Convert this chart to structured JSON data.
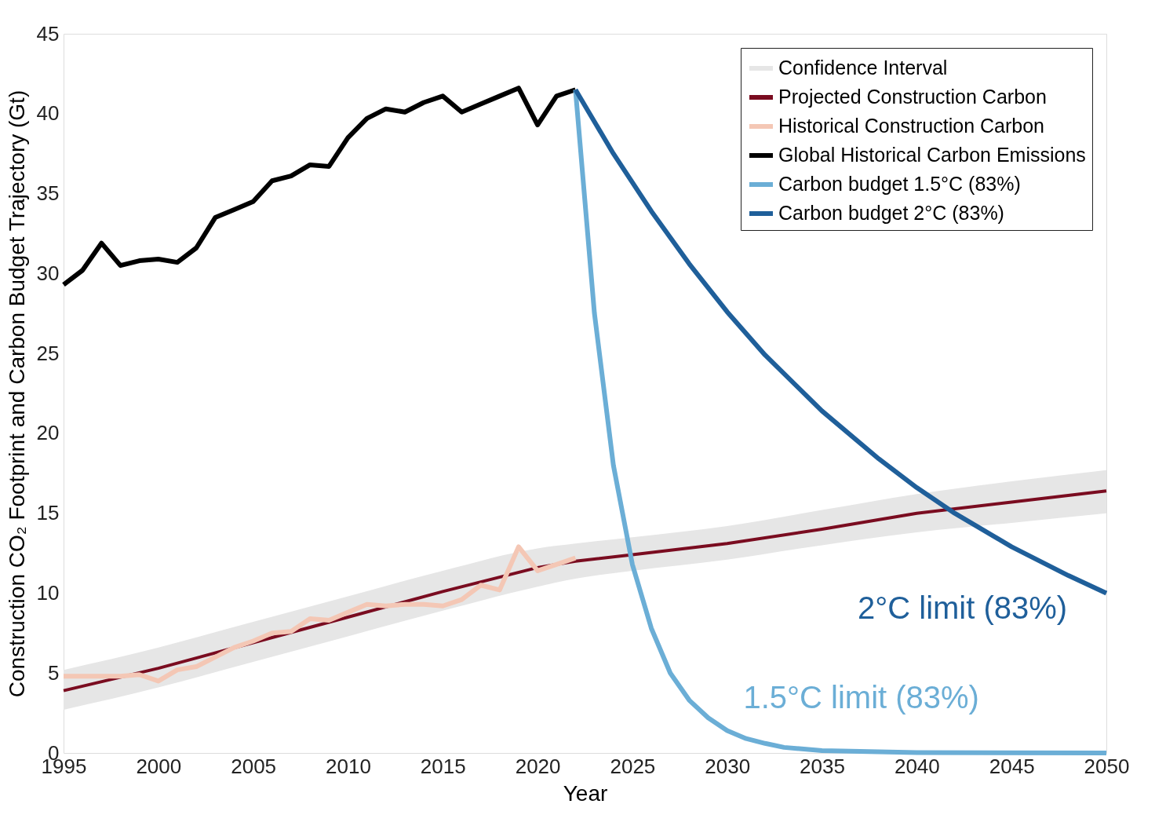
{
  "chart_data": {
    "type": "line",
    "xlabel": "Year",
    "ylabel": "Construction CO₂ Footprint and Carbon Budget Trajectory (Gt)",
    "xlim": [
      1995,
      2050
    ],
    "xticks": [
      1995,
      2000,
      2005,
      2010,
      2015,
      2020,
      2025,
      2030,
      2035,
      2040,
      2045,
      2050
    ],
    "ylim": [
      0,
      45
    ],
    "yticks": [
      0,
      5,
      10,
      15,
      20,
      25,
      30,
      35,
      40,
      45
    ],
    "grid": false,
    "legend": "top right",
    "line_style": "solid",
    "marker": "none",
    "series": [
      {
        "name": "Confidence Interval",
        "type": "area",
        "color": "#e6e6e6"
      },
      {
        "name": "Projected Construction Carbon",
        "color": "#7a0c20",
        "x": [
          1995,
          2000,
          2005,
          2010,
          2015,
          2020,
          2022,
          2025,
          2030,
          2035,
          2040,
          2045,
          2050
        ],
        "values": [
          3.9,
          5.3,
          6.9,
          8.5,
          10.1,
          11.6,
          12.0,
          12.4,
          13.1,
          14.0,
          15.0,
          15.7,
          16.4
        ],
        "lower": [
          2.7,
          4.1,
          5.7,
          7.3,
          8.9,
          10.4,
          10.9,
          11.4,
          12.1,
          13.0,
          13.8,
          14.4,
          15.0
        ],
        "upper": [
          5.2,
          6.6,
          8.2,
          9.8,
          11.4,
          12.8,
          13.1,
          13.5,
          14.2,
          15.2,
          16.2,
          17.0,
          17.7
        ]
      },
      {
        "name": "Historical Construction Carbon",
        "color": "#f4c7b5",
        "x": [
          1995,
          1996,
          1997,
          1998,
          1999,
          2000,
          2001,
          2002,
          2003,
          2004,
          2005,
          2006,
          2007,
          2008,
          2009,
          2010,
          2011,
          2012,
          2013,
          2014,
          2015,
          2016,
          2017,
          2018,
          2019,
          2020,
          2021,
          2022
        ],
        "values": [
          4.8,
          4.8,
          4.8,
          4.8,
          4.9,
          4.5,
          5.2,
          5.4,
          6.0,
          6.6,
          7.0,
          7.5,
          7.6,
          8.4,
          8.3,
          8.8,
          9.3,
          9.2,
          9.3,
          9.3,
          9.2,
          9.6,
          10.5,
          10.2,
          12.9,
          11.4,
          11.8,
          12.2
        ]
      },
      {
        "name": "Global Historical Carbon Emissions",
        "color": "#000000",
        "x": [
          1995,
          1996,
          1997,
          1998,
          1999,
          2000,
          2001,
          2002,
          2003,
          2004,
          2005,
          2006,
          2007,
          2008,
          2009,
          2010,
          2011,
          2012,
          2013,
          2014,
          2015,
          2016,
          2017,
          2018,
          2019,
          2020,
          2021,
          2022
        ],
        "values": [
          29.3,
          30.2,
          31.9,
          30.5,
          30.8,
          30.9,
          30.7,
          31.6,
          33.5,
          34.0,
          34.5,
          35.8,
          36.1,
          36.8,
          36.7,
          38.5,
          39.7,
          40.3,
          40.1,
          40.7,
          41.1,
          40.1,
          40.6,
          41.1,
          41.6,
          39.3,
          41.1,
          41.5
        ]
      },
      {
        "name": "Carbon budget 1.5°C (83%)",
        "color": "#6baed6",
        "x": [
          2022,
          2023,
          2024,
          2025,
          2026,
          2027,
          2028,
          2029,
          2030,
          2031,
          2032,
          2033,
          2035,
          2040,
          2050
        ],
        "values": [
          41.5,
          27.5,
          18.0,
          11.8,
          7.8,
          5.0,
          3.3,
          2.2,
          1.4,
          0.9,
          0.6,
          0.35,
          0.15,
          0.03,
          0.0
        ]
      },
      {
        "name": "Carbon budget 2°C (83%)",
        "color": "#1f5f9a",
        "x": [
          2022,
          2024,
          2026,
          2028,
          2030,
          2032,
          2035,
          2038,
          2040,
          2042,
          2045,
          2048,
          2050
        ],
        "values": [
          41.5,
          37.5,
          33.9,
          30.6,
          27.6,
          24.9,
          21.4,
          18.4,
          16.6,
          15.0,
          12.9,
          11.1,
          10.0
        ]
      }
    ],
    "annotations": [
      "2°C limit (83%)",
      "1.5°C limit (83%)"
    ]
  }
}
